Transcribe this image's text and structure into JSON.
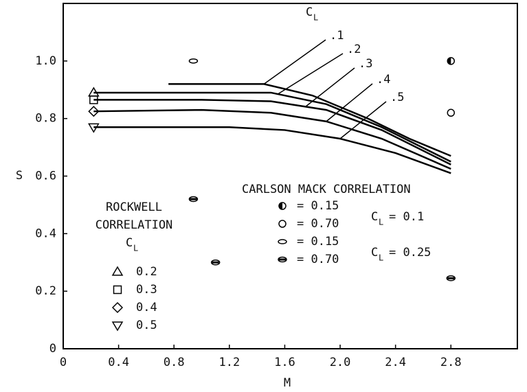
{
  "chart_data": {
    "type": "line",
    "xlabel": "M",
    "ylabel": "S",
    "xlim": [
      0,
      3.28
    ],
    "ylim": [
      0,
      1.2
    ],
    "xticks": [
      0,
      0.4,
      0.8,
      1.2,
      1.6,
      {
        "value": 2,
        "label": "2.0"
      },
      2.4,
      2.8
    ],
    "yticks": [
      0,
      0.2,
      0.4,
      0.6,
      0.8,
      {
        "value": 1,
        "label": "1.0"
      }
    ],
    "curve_label": {
      "main": "C",
      "sub": "L"
    },
    "series": [
      {
        "name": ".1",
        "color": "#000",
        "x": [
          0.76,
          1.0,
          1.45,
          1.8,
          2.2,
          2.5,
          2.8
        ],
        "y": [
          0.92,
          0.92,
          0.92,
          0.88,
          0.8,
          0.73,
          0.67
        ]
      },
      {
        "name": ".2",
        "color": "#000",
        "x": [
          0.22,
          1.0,
          1.5,
          1.9,
          2.3,
          2.8
        ],
        "y": [
          0.89,
          0.89,
          0.89,
          0.85,
          0.77,
          0.65
        ]
      },
      {
        "name": ".3",
        "color": "#000",
        "x": [
          0.22,
          1.0,
          1.5,
          1.9,
          2.3,
          2.8
        ],
        "y": [
          0.865,
          0.865,
          0.86,
          0.83,
          0.76,
          0.64
        ]
      },
      {
        "name": ".4",
        "color": "#000",
        "x": [
          0.22,
          1.0,
          1.5,
          1.9,
          2.3,
          2.8
        ],
        "y": [
          0.825,
          0.83,
          0.82,
          0.79,
          0.73,
          0.625
        ]
      },
      {
        "name": ".5",
        "color": "#000",
        "x": [
          0.22,
          1.2,
          1.6,
          2.0,
          2.4,
          2.8
        ],
        "y": [
          0.77,
          0.77,
          0.76,
          0.73,
          0.68,
          0.61
        ]
      }
    ],
    "rockwell": {
      "title": [
        "ROCKWELL",
        "CORRELATION"
      ],
      "symbols": [
        "triangle-up",
        "square",
        "diamond",
        "triangle-down"
      ],
      "labels": [
        "0.2",
        "0.3",
        "0.4",
        "0.5"
      ],
      "x": [
        0.22,
        0.22,
        0.22,
        0.22
      ],
      "y": [
        0.89,
        0.865,
        0.825,
        0.77
      ]
    },
    "carlson": {
      "title": "CARLSON MACK CORRELATION",
      "symbols": [
        "half-circle",
        "circle",
        "ellipse",
        "filled-ellipse"
      ],
      "labels": [
        "= 0.15",
        "= 0.70",
        "= 0.15",
        "= 0.70"
      ],
      "groups": [
        "= 0.1",
        "= 0.25"
      ],
      "points": {
        "symbol": [
          0,
          1,
          2,
          3,
          3,
          3
        ],
        "x": [
          2.8,
          2.8,
          0.94,
          0.94,
          1.1,
          2.8
        ],
        "y": [
          1.0,
          0.82,
          1.0,
          0.52,
          0.3,
          0.245
        ]
      }
    }
  }
}
